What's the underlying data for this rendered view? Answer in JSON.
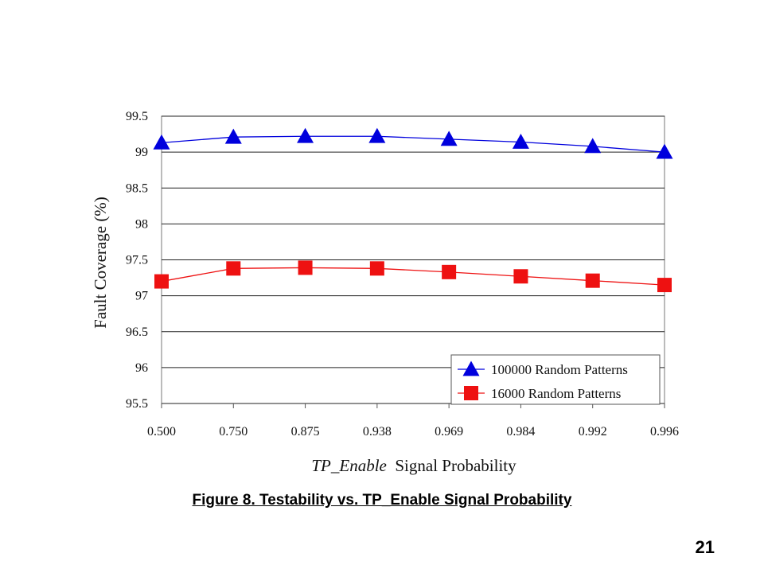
{
  "slide": {
    "caption": "Figure 8. Testability vs. TP_Enable Signal Probability",
    "page_number": "21"
  },
  "chart_data": {
    "type": "line",
    "categories": [
      "0.500",
      "0.750",
      "0.875",
      "0.938",
      "0.969",
      "0.984",
      "0.992",
      "0.996"
    ],
    "xlabel_italic": "TP_Enable",
    "xlabel_rest": "Signal Probability",
    "ylabel": "Fault Coverage (%)",
    "ylim": [
      95.5,
      99.5
    ],
    "yticks": [
      95.5,
      96,
      96.5,
      97,
      97.5,
      98,
      98.5,
      99,
      99.5
    ],
    "grid": "horizontal",
    "legend_position": "bottom-right",
    "series": [
      {
        "name": "100000 Random Patterns",
        "marker": "triangle",
        "color": "#0000dd",
        "values": [
          99.13,
          99.21,
          99.22,
          99.22,
          99.18,
          99.14,
          99.08,
          99.0
        ]
      },
      {
        "name": "16000 Random Patterns",
        "marker": "square",
        "color": "#ee1111",
        "values": [
          97.2,
          97.38,
          97.39,
          97.38,
          97.33,
          97.27,
          97.21,
          97.15
        ]
      }
    ]
  }
}
